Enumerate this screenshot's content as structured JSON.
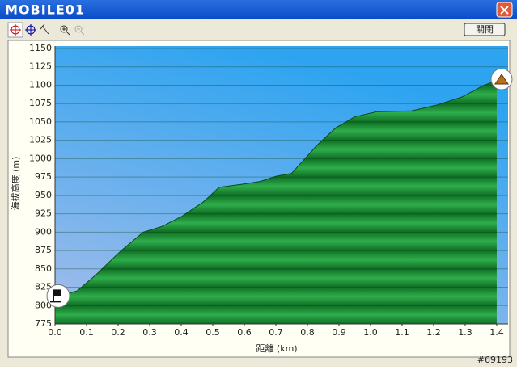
{
  "window": {
    "logo": "MOBILE01",
    "close_button": "關閉",
    "watermark": "#69193"
  },
  "chart_data": {
    "type": "area",
    "x_label": "距離 (km)",
    "y_label": "海拔高度 (m)",
    "x": [
      0.0,
      0.07,
      0.13,
      0.21,
      0.28,
      0.34,
      0.4,
      0.47,
      0.52,
      0.59,
      0.65,
      0.7,
      0.75,
      0.83,
      0.89,
      0.95,
      1.02,
      1.13,
      1.21,
      1.29,
      1.36,
      1.4
    ],
    "series": [
      {
        "color": "#1f8f3a",
        "values": [
          812,
          820,
          842,
          875,
          900,
          908,
          921,
          941,
          961,
          965,
          969,
          976,
          980,
          1018,
          1042,
          1057,
          1064,
          1065,
          1073,
          1084,
          1100,
          1106
        ]
      }
    ],
    "xlim": [
      0,
      1.436
    ],
    "ylim": [
      775,
      1150
    ],
    "xticks": [
      {
        "value": 0,
        "label": "0.0"
      },
      0.1,
      0.2,
      0.3,
      0.4,
      0.5,
      0.6,
      0.7,
      0.8,
      0.9,
      {
        "value": 1,
        "label": "1.0"
      },
      1.1,
      1.2,
      1.3,
      1.4
    ],
    "yticks": [
      775,
      800,
      825,
      850,
      875,
      900,
      925,
      950,
      975,
      1000,
      1025,
      1050,
      1075,
      1100,
      1125,
      1150
    ],
    "grid": true
  }
}
